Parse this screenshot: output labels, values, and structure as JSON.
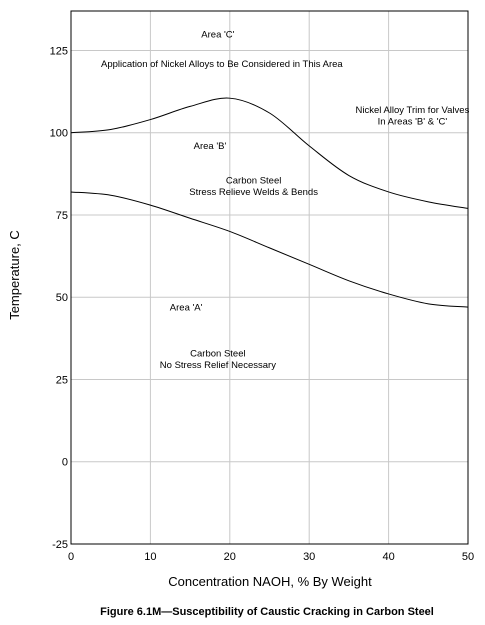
{
  "chart_data": {
    "type": "line",
    "title": "Figure 6.1M—Susceptibility of Caustic Cracking in Carbon Steel",
    "xlabel": "Concentration NAOH, % By Weight",
    "ylabel": "Temperature, C",
    "xlim": [
      0,
      50
    ],
    "ylim": [
      -25,
      137
    ],
    "x_ticks": [
      0,
      10,
      20,
      30,
      40,
      50
    ],
    "y_ticks": [
      -25,
      0,
      25,
      50,
      75,
      100,
      125
    ],
    "grid": true,
    "series": [
      {
        "x": [
          0,
          5,
          10,
          15,
          20,
          25,
          30,
          35,
          40,
          45,
          50
        ],
        "values": [
          100,
          101,
          104,
          108,
          110.5,
          106,
          96,
          87,
          82,
          79,
          77
        ]
      },
      {
        "x": [
          0,
          5,
          10,
          15,
          20,
          25,
          30,
          35,
          40,
          45,
          50
        ],
        "values": [
          82,
          81,
          78,
          74,
          70,
          65,
          60,
          55,
          51,
          48,
          47
        ]
      }
    ],
    "annotations": [
      {
        "text": "Area 'C'",
        "x": 18.5,
        "y": 129
      },
      {
        "text": "Application of Nickel Alloys to Be Considered in This Area",
        "x": 19,
        "y": 120
      },
      {
        "text": "Nickel Alloy Trim for Valves",
        "x": 43,
        "y": 106
      },
      {
        "text": "In Areas 'B' & 'C'",
        "x": 43,
        "y": 102.5
      },
      {
        "text": "Area 'B'",
        "x": 17.5,
        "y": 95
      },
      {
        "text": "Carbon Steel",
        "x": 23,
        "y": 84.5
      },
      {
        "text": "Stress Relieve Welds & Bends",
        "x": 23,
        "y": 81
      },
      {
        "text": "Area 'A'",
        "x": 14.5,
        "y": 46
      },
      {
        "text": "Carbon Steel",
        "x": 18.5,
        "y": 32
      },
      {
        "text": "No Stress Relief Necessary",
        "x": 18.5,
        "y": 28.5
      }
    ]
  }
}
